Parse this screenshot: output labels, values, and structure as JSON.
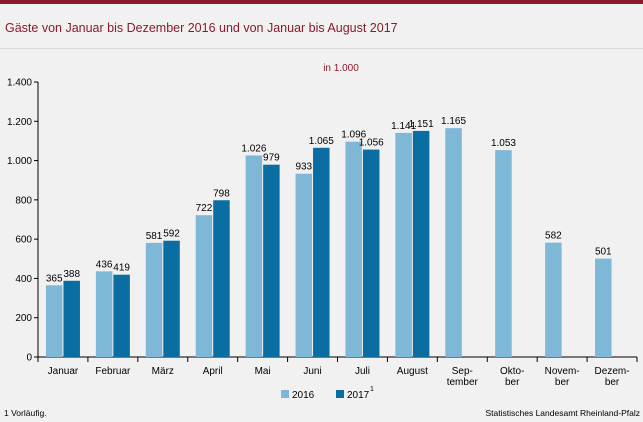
{
  "colors": {
    "accent": "#8b1a2b",
    "series_2016": "#7fb7d6",
    "series_2017": "#0b6ea3",
    "background": "#f1f1f1"
  },
  "title": "Gäste von Januar bis Dezember 2016 und von Januar bis August 2017",
  "footnote": "1 Vorläufig.",
  "source": "Statistisches Landesamt Rheinland-Pfalz",
  "chart_data": {
    "type": "bar",
    "unit_label": "in 1.000",
    "categories": [
      "Januar",
      "Februar",
      "März",
      "April",
      "Mai",
      "Juni",
      "Juli",
      "August",
      "Sep-\ntember",
      "Okto-\nber",
      "Novem-\nber",
      "Dezem-\nber"
    ],
    "series": [
      {
        "name": "2016",
        "values": [
          365,
          436,
          581,
          722,
          1026,
          933,
          1096,
          1141,
          1165,
          1053,
          582,
          501
        ],
        "labels": [
          "365",
          "436",
          "581",
          "722",
          "1.026",
          "933",
          "1.096",
          "1.141",
          "1.165",
          "1.053",
          "582",
          "501"
        ]
      },
      {
        "name": "2017",
        "name_superscript": "1",
        "values": [
          388,
          419,
          592,
          798,
          979,
          1065,
          1056,
          1151,
          null,
          null,
          null,
          null
        ],
        "labels": [
          "388",
          "419",
          "592",
          "798",
          "979",
          "1.065",
          "1.056",
          "1.151",
          "",
          "",
          "",
          ""
        ]
      }
    ],
    "ylim": [
      0,
      1400
    ],
    "yticks": [
      0,
      200,
      400,
      600,
      800,
      1000,
      1200,
      1400
    ],
    "ytick_labels": [
      "0",
      "200",
      "400",
      "600",
      "800",
      "1.000",
      "1.200",
      "1.400"
    ],
    "grid": false,
    "legend_position": "bottom-center"
  }
}
